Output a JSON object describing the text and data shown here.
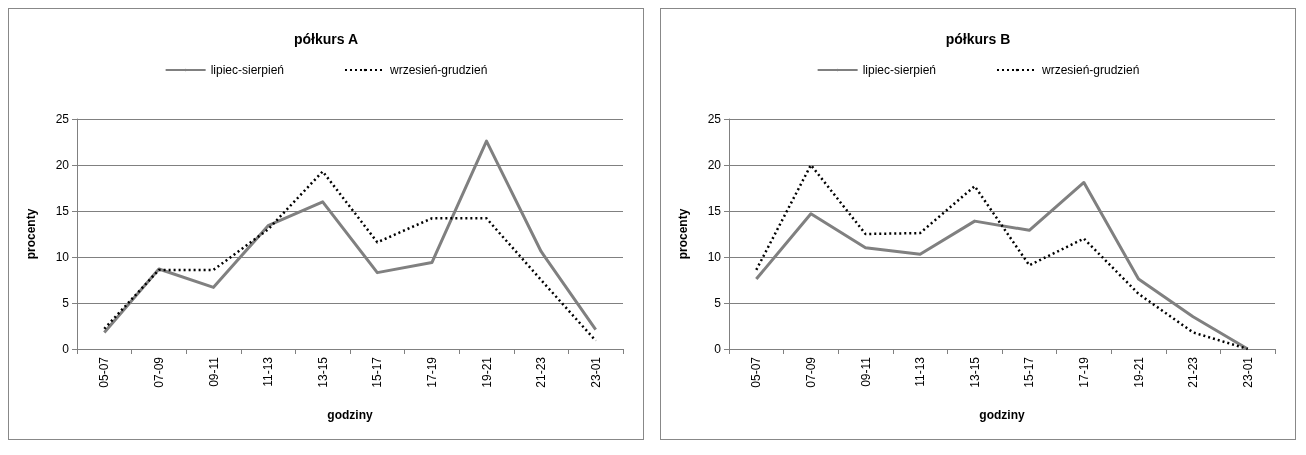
{
  "chart_data": [
    {
      "type": "line",
      "title": "półkurs A",
      "xlabel": "godziny",
      "ylabel": "procenty",
      "categories": [
        "05-07",
        "07-09",
        "09-11",
        "11-13",
        "13-15",
        "15-17",
        "17-19",
        "19-21",
        "21-23",
        "23-01"
      ],
      "series": [
        {
          "name": "lipiec-sierpień",
          "color": "#808080",
          "line_style": "solid",
          "values": [
            1.8,
            8.7,
            6.7,
            13.4,
            16.0,
            8.3,
            9.4,
            22.6,
            10.6,
            2.1
          ]
        },
        {
          "name": "wrzesień-grudzień",
          "color": "#000000",
          "line_style": "dotted",
          "values": [
            2.2,
            8.6,
            8.6,
            13.0,
            19.3,
            11.6,
            14.2,
            14.2,
            7.5,
            0.9
          ]
        }
      ],
      "ylim": [
        0,
        25
      ],
      "yticks": [
        0,
        5,
        10,
        15,
        20,
        25
      ],
      "grid": "y",
      "legend": "top",
      "marker": "none"
    },
    {
      "type": "line",
      "title": "półkurs B",
      "xlabel": "godziny",
      "ylabel": "procenty",
      "categories": [
        "05-07",
        "07-09",
        "09-11",
        "11-13",
        "13-15",
        "15-17",
        "17-19",
        "19-21",
        "21-23",
        "23-01"
      ],
      "series": [
        {
          "name": "lipiec-sierpień",
          "color": "#808080",
          "line_style": "solid",
          "values": [
            7.6,
            14.7,
            11.0,
            10.3,
            13.9,
            12.9,
            18.1,
            7.6,
            3.5,
            0.0
          ]
        },
        {
          "name": "wrzesień-grudzień",
          "color": "#000000",
          "line_style": "dotted",
          "values": [
            8.6,
            20.0,
            12.5,
            12.6,
            17.7,
            9.1,
            12.0,
            6.0,
            1.8,
            0.0
          ]
        }
      ],
      "ylim": [
        0,
        25
      ],
      "yticks": [
        0,
        5,
        10,
        15,
        20,
        25
      ],
      "grid": "y",
      "legend": "top",
      "marker": "none"
    }
  ]
}
